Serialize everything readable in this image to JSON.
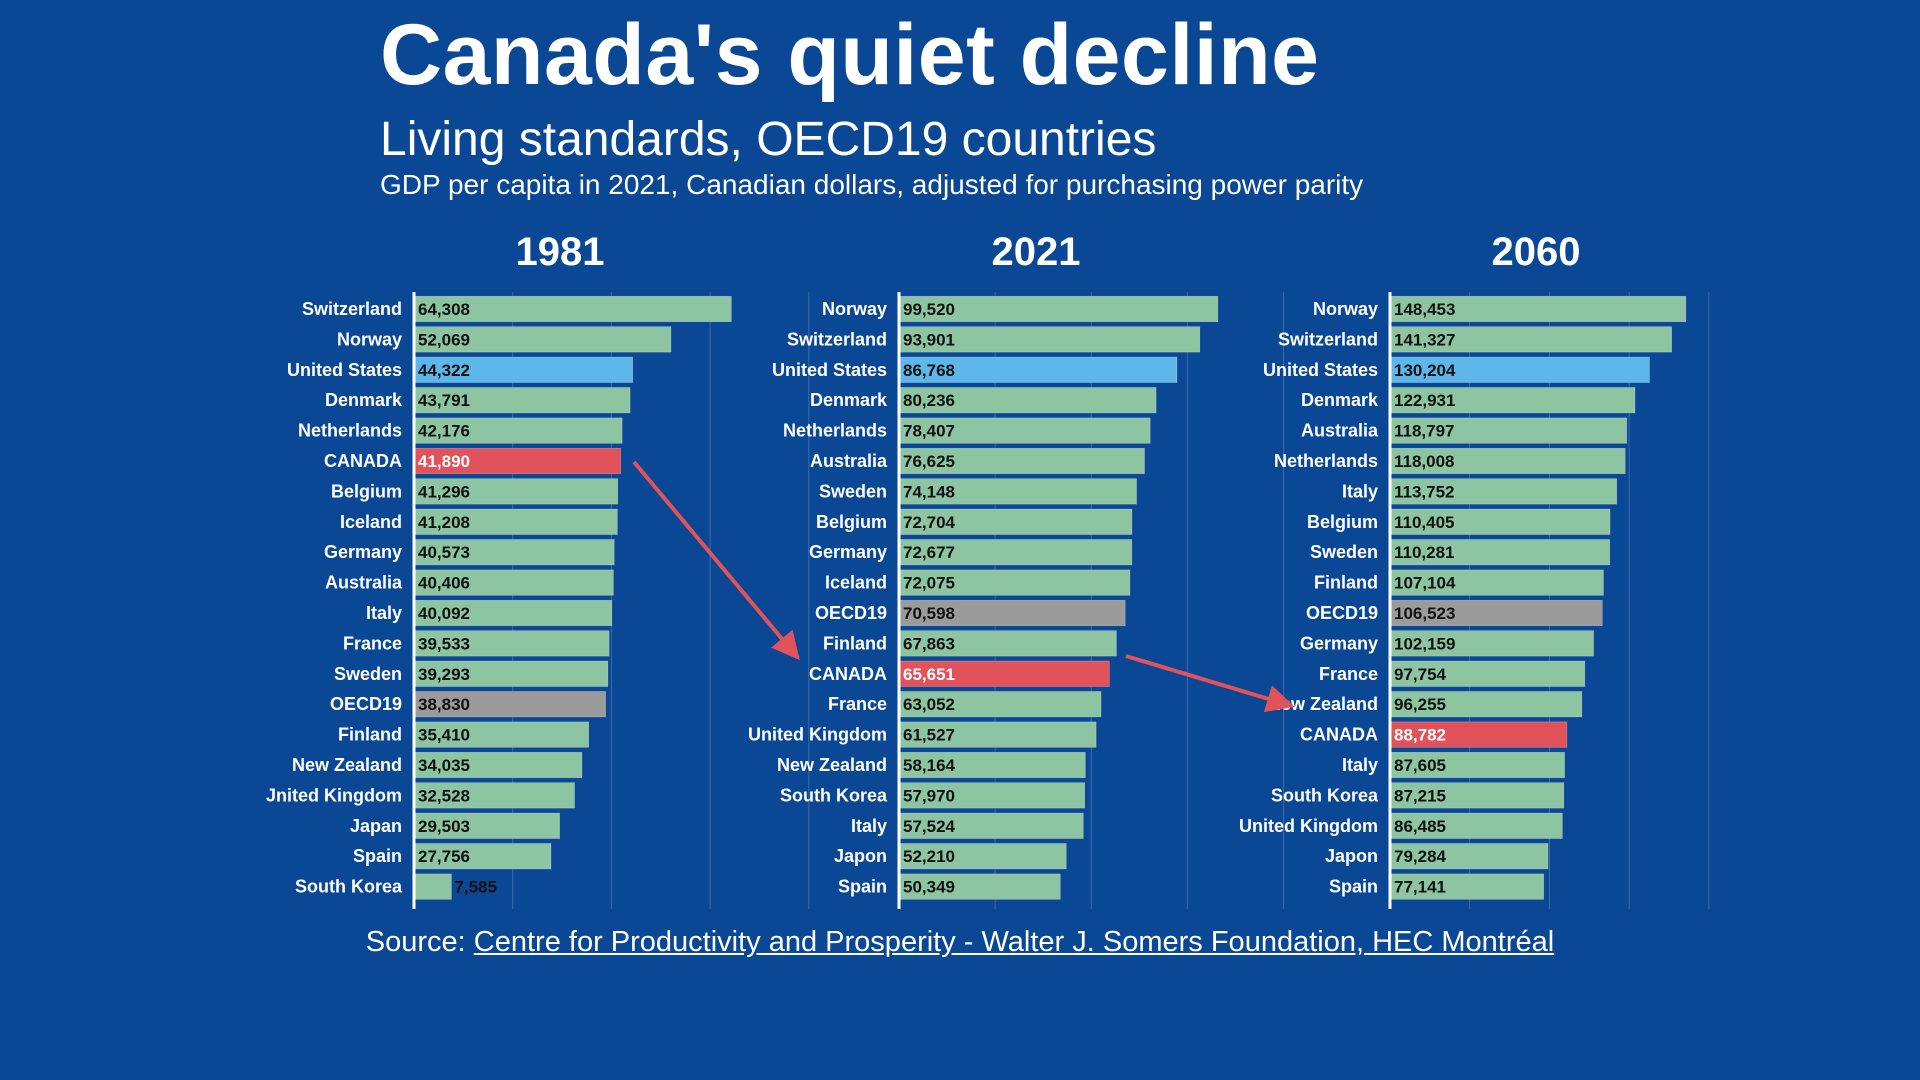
{
  "title": "Canada's quiet decline",
  "subtitle": "Living standards, OECD19 countries",
  "note": "GDP per capita in 2021, Canadian dollars, adjusted for purchasing power parity",
  "source": {
    "prefix": "Source: ",
    "link_text": "Centre for Productivity and Prosperity - Walter J. Somers Foundation, HEC Montréal"
  },
  "colors": {
    "background": "#0a4795",
    "bar_default": "#8dc4a2",
    "bar_canada": "#e0535a",
    "bar_united_states": "#5db7e8",
    "bar_oecd19": "#9b9b9b",
    "arrow": "#e0535a"
  },
  "chart_data": [
    {
      "type": "bar",
      "orientation": "horizontal",
      "title": "1981",
      "categories": [
        "Switzerland",
        "Norway",
        "United States",
        "Denmark",
        "Netherlands",
        "CANADA",
        "Belgium",
        "Iceland",
        "Germany",
        "Australia",
        "Italy",
        "France",
        "Sweden",
        "OECD19",
        "Finland",
        "New Zealand",
        "Jnited Kingdom",
        "Japan",
        "Spain",
        "South Korea"
      ],
      "values": [
        64308,
        52069,
        44322,
        43791,
        42176,
        41890,
        41296,
        41208,
        40573,
        40406,
        40092,
        39533,
        39293,
        38830,
        35410,
        34035,
        32528,
        29503,
        27756,
        7585
      ],
      "value_labels": [
        "64,308",
        "52,069",
        "44,322",
        "43,791",
        "42,176",
        "41,890",
        "41,296",
        "41,208",
        "40,573",
        "40,406",
        "40,092",
        "39,533",
        "39,293",
        "38,830",
        "35,410",
        "34,035",
        "32,528",
        "29,503",
        "27,756",
        "7,585"
      ],
      "xlim": [
        0,
        80000
      ],
      "grid": true
    },
    {
      "type": "bar",
      "orientation": "horizontal",
      "title": "2021",
      "categories": [
        "Norway",
        "Switzerland",
        "United States",
        "Denmark",
        "Netherlands",
        "Australia",
        "Sweden",
        "Belgium",
        "Germany",
        "Iceland",
        "OECD19",
        "Finland",
        "CANADA",
        "France",
        "United Kingdom",
        "New Zealand",
        "South Korea",
        "Italy",
        "Japon",
        "Spain"
      ],
      "values": [
        99520,
        93901,
        86768,
        80236,
        78407,
        76625,
        74148,
        72704,
        72677,
        72075,
        70598,
        67863,
        65651,
        63052,
        61527,
        58164,
        57970,
        57524,
        52210,
        50349
      ],
      "value_labels": [
        "99,520",
        "93,901",
        "86,768",
        "80,236",
        "78,407",
        "76,625",
        "74,148",
        "72,704",
        "72,677",
        "72,075",
        "70,598",
        "67,863",
        "65,651",
        "63,052",
        "61,527",
        "58,164",
        "57,970",
        "57,524",
        "52,210",
        "50,349"
      ],
      "xlim": [
        0,
        120000
      ],
      "grid": true
    },
    {
      "type": "bar",
      "orientation": "horizontal",
      "title": "2060",
      "categories": [
        "Norway",
        "Switzerland",
        "United States",
        "Denmark",
        "Australia",
        "Netherlands",
        "Italy",
        "Belgium",
        "Sweden",
        "Finland",
        "OECD19",
        "Germany",
        "France",
        "New Zealand",
        "CANADA",
        "Italy",
        "South Korea",
        "United Kingdom",
        "Japon",
        "Spain"
      ],
      "values": [
        148453,
        141327,
        130204,
        122931,
        118797,
        118008,
        113752,
        110405,
        110281,
        107104,
        106523,
        102159,
        97754,
        96255,
        88782,
        87605,
        87215,
        86485,
        79284,
        77141
      ],
      "value_labels": [
        "148,453",
        "141,327",
        "130,204",
        "122,931",
        "118,797",
        "118,008",
        "113,752",
        "110,405",
        "110,281",
        "107,104",
        "106,523",
        "102,159",
        "97,754",
        "96,255",
        "88,782",
        "87,605",
        "87,215",
        "86,485",
        "79,284",
        "77,141"
      ],
      "xlim": [
        0,
        160000
      ],
      "grid": true
    }
  ]
}
